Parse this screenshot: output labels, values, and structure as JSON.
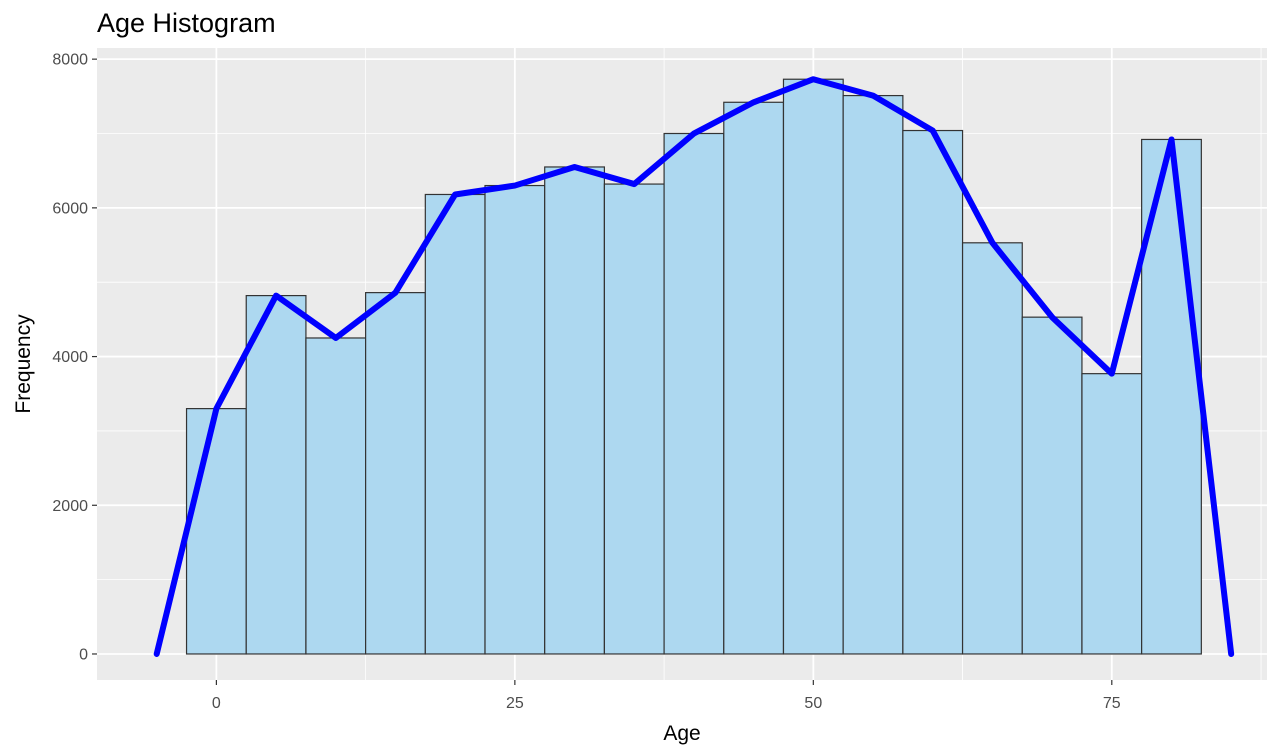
{
  "chart_data": {
    "type": "bar",
    "title": "Age Histogram",
    "xlabel": "Age",
    "ylabel": "Frequency",
    "xlim": [
      -10,
      88
    ],
    "ylim": [
      -350,
      8150
    ],
    "x_ticks": [
      0,
      25,
      50,
      75
    ],
    "y_ticks": [
      0,
      2000,
      4000,
      6000,
      8000
    ],
    "bin_width": 5,
    "bins": [
      {
        "center": 0,
        "count": 3300
      },
      {
        "center": 5,
        "count": 4820
      },
      {
        "center": 10,
        "count": 4250
      },
      {
        "center": 15,
        "count": 4860
      },
      {
        "center": 20,
        "count": 6180
      },
      {
        "center": 25,
        "count": 6300
      },
      {
        "center": 30,
        "count": 6550
      },
      {
        "center": 35,
        "count": 6320
      },
      {
        "center": 40,
        "count": 7000
      },
      {
        "center": 45,
        "count": 7420
      },
      {
        "center": 50,
        "count": 7730
      },
      {
        "center": 55,
        "count": 7510
      },
      {
        "center": 60,
        "count": 7040
      },
      {
        "center": 65,
        "count": 5530
      },
      {
        "center": 70,
        "count": 4530
      },
      {
        "center": 75,
        "count": 3770
      },
      {
        "center": 80,
        "count": 6920
      }
    ],
    "freqpoly": {
      "x": [
        -5,
        0,
        5,
        10,
        15,
        20,
        25,
        30,
        35,
        40,
        45,
        50,
        55,
        60,
        65,
        70,
        75,
        80,
        85
      ],
      "y": [
        0,
        3300,
        4820,
        4250,
        4860,
        6180,
        6300,
        6550,
        6320,
        7000,
        7420,
        7730,
        7510,
        7040,
        5530,
        4530,
        3770,
        6920,
        0
      ]
    },
    "grid": true,
    "colors": {
      "panel_background": "#ebebeb",
      "grid_major": "#ffffff",
      "bar_fill": "#add8f0",
      "bar_outline": "#333333",
      "line": "#0000ff"
    }
  }
}
